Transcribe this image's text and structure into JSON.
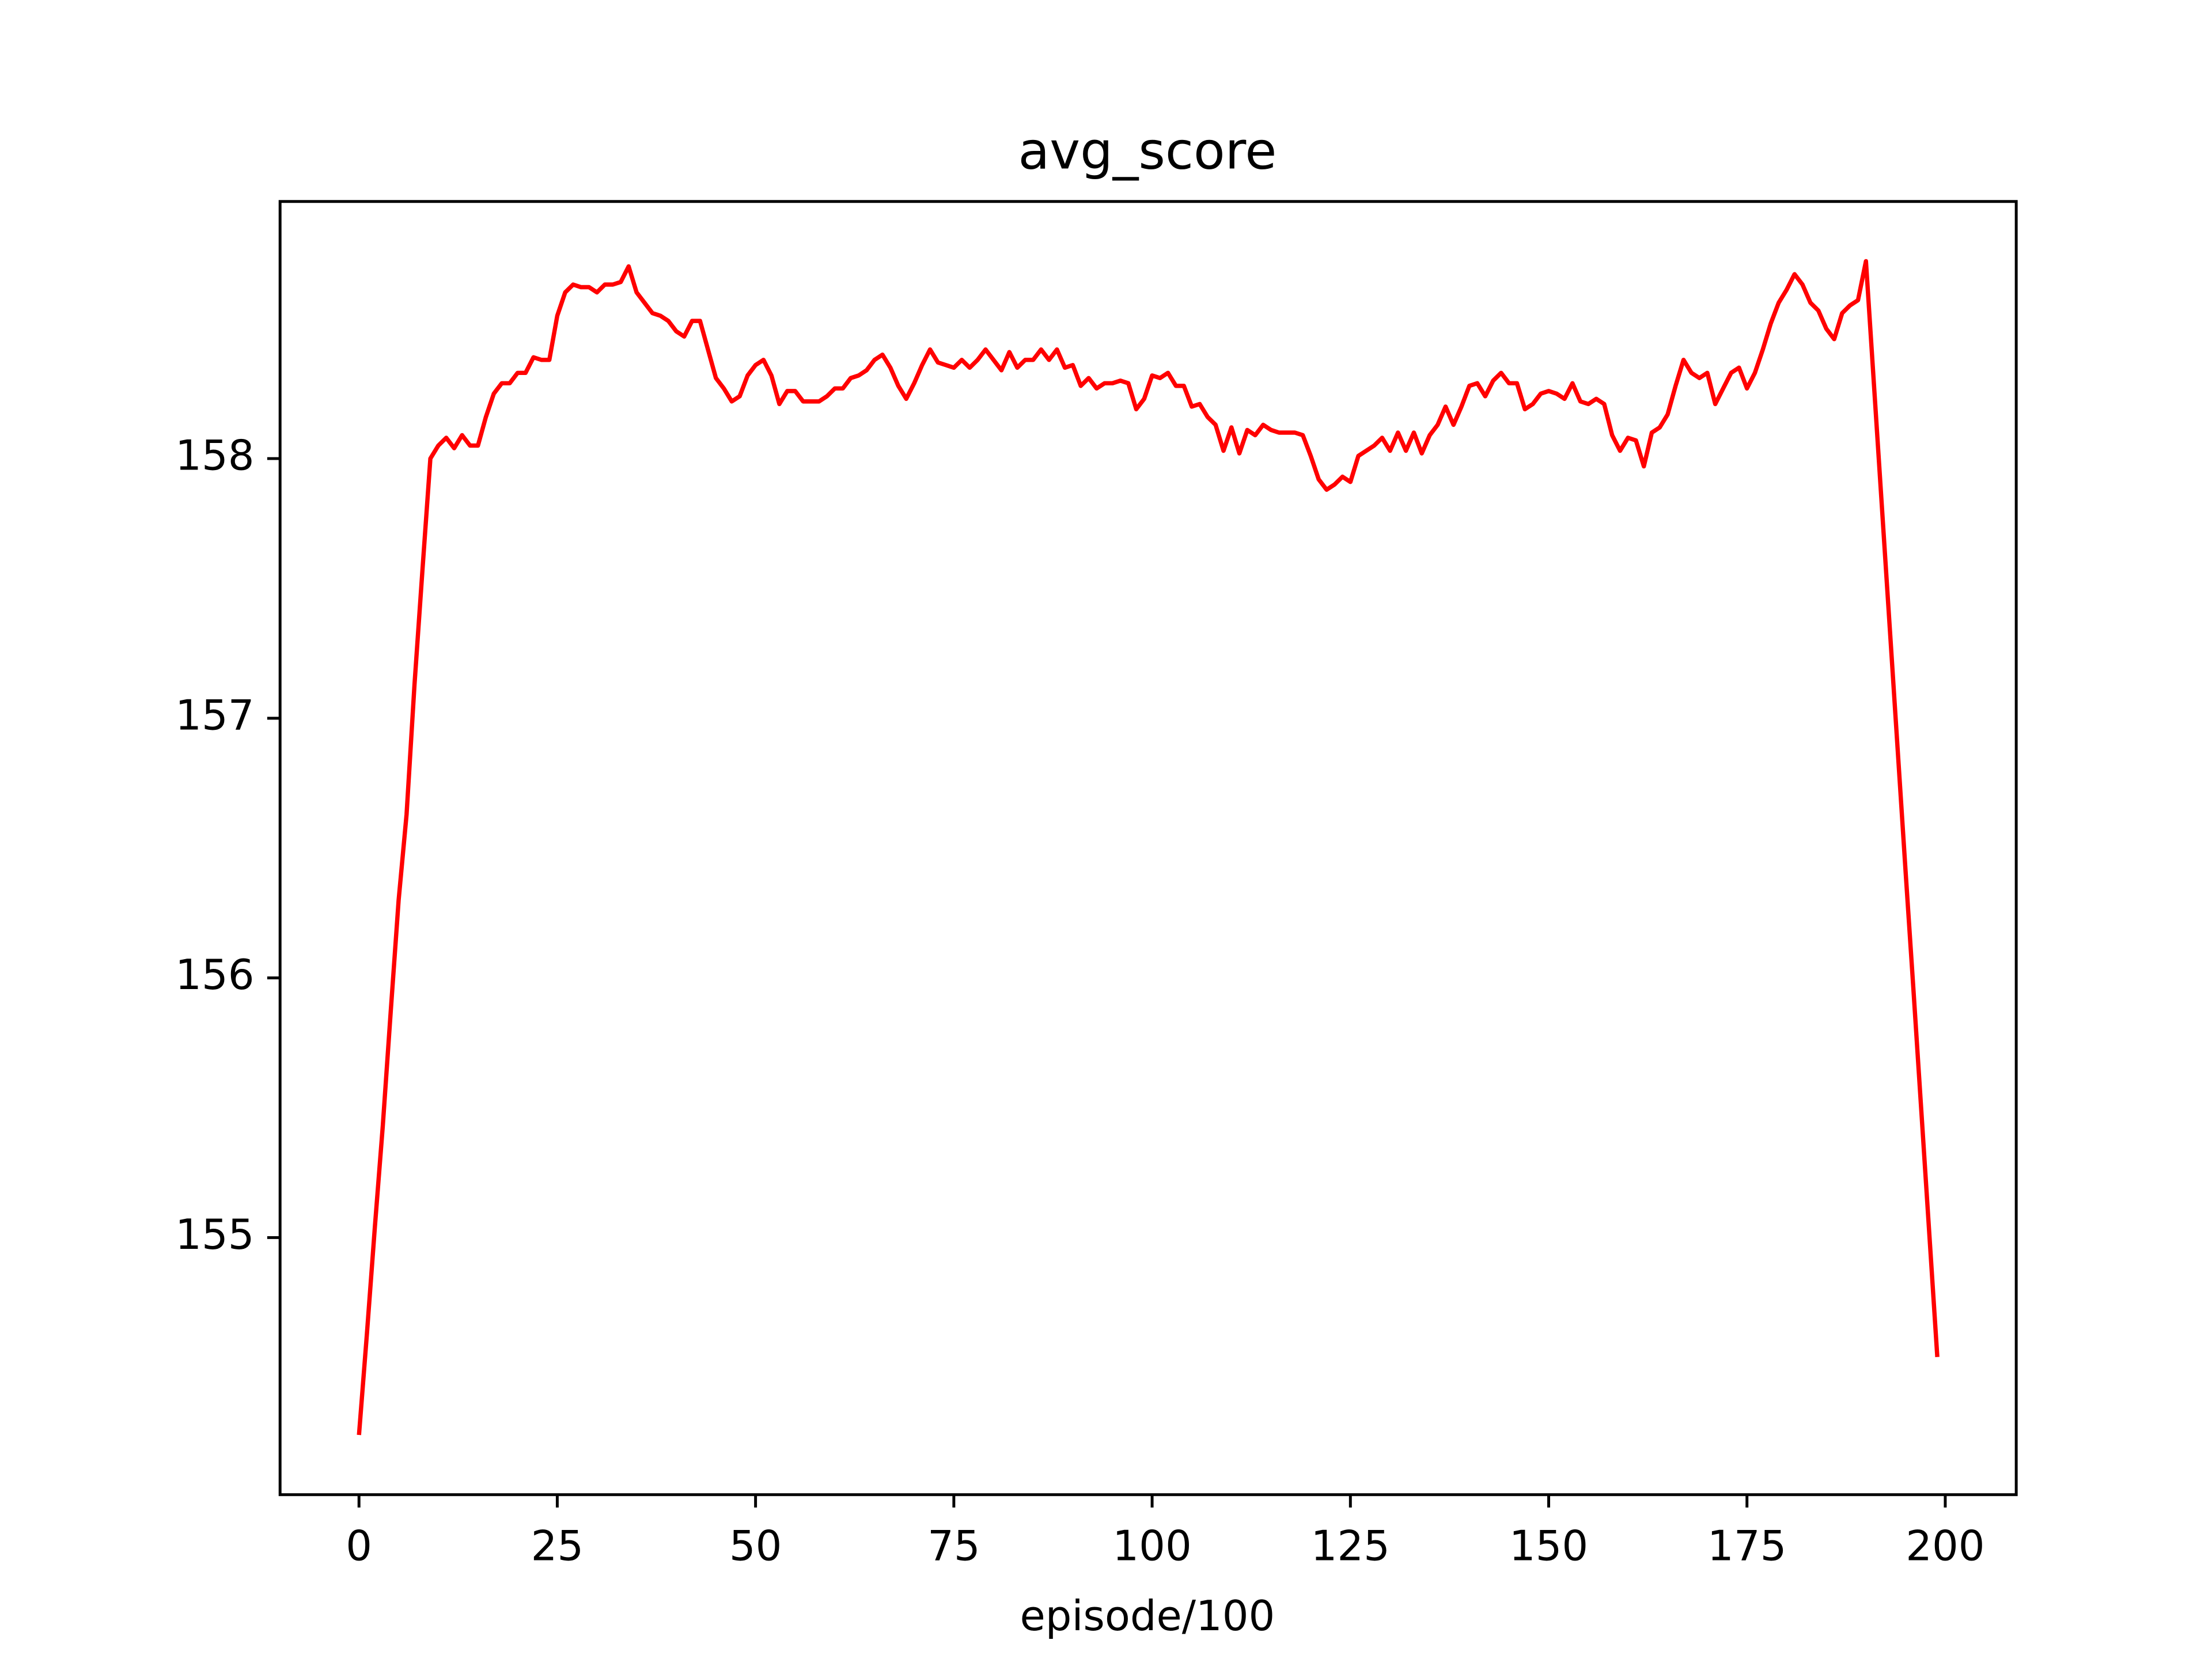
{
  "chart_data": {
    "type": "line",
    "title": "avg_score",
    "xlabel": "episode/100",
    "x": [
      0,
      1,
      2,
      3,
      4,
      5,
      6,
      7,
      8,
      9,
      10,
      11,
      12,
      13,
      14,
      15,
      16,
      17,
      18,
      19,
      20,
      21,
      22,
      23,
      24,
      25,
      26,
      27,
      28,
      29,
      30,
      31,
      32,
      33,
      34,
      35,
      36,
      37,
      38,
      39,
      40,
      41,
      42,
      43,
      44,
      45,
      46,
      47,
      48,
      49,
      50,
      51,
      52,
      53,
      54,
      55,
      56,
      57,
      58,
      59,
      60,
      61,
      62,
      63,
      64,
      65,
      66,
      67,
      68,
      69,
      70,
      71,
      72,
      73,
      74,
      75,
      76,
      77,
      78,
      79,
      80,
      81,
      82,
      83,
      84,
      85,
      86,
      87,
      88,
      89,
      90,
      91,
      92,
      93,
      94,
      95,
      96,
      97,
      98,
      99,
      100,
      101,
      102,
      103,
      104,
      105,
      106,
      107,
      108,
      109,
      110,
      111,
      112,
      113,
      114,
      115,
      116,
      117,
      118,
      119,
      120,
      121,
      122,
      123,
      124,
      125,
      126,
      127,
      128,
      129,
      130,
      131,
      132,
      133,
      134,
      135,
      136,
      137,
      138,
      139,
      140,
      141,
      142,
      143,
      144,
      145,
      146,
      147,
      148,
      149,
      150,
      151,
      152,
      153,
      154,
      155,
      156,
      157,
      158,
      159,
      160,
      161,
      162,
      163,
      164,
      165,
      166,
      167,
      168,
      169,
      170,
      171,
      172,
      173,
      174,
      175,
      176,
      177,
      178,
      179,
      180,
      181,
      182,
      183,
      184,
      185,
      186,
      187,
      188,
      189,
      190,
      191,
      192,
      193,
      194,
      195,
      196,
      197,
      198,
      199
    ],
    "series": [
      {
        "color": "#ff0000",
        "values": [
          154.24,
          154.63,
          155.04,
          155.43,
          155.87,
          156.3,
          156.63,
          157.13,
          157.57,
          158.0,
          158.05,
          158.08,
          158.04,
          158.09,
          158.05,
          158.05,
          158.16,
          158.25,
          158.29,
          158.29,
          158.33,
          158.33,
          158.39,
          158.38,
          158.38,
          158.55,
          158.64,
          158.67,
          158.66,
          158.66,
          158.64,
          158.67,
          158.67,
          158.68,
          158.74,
          158.64,
          158.6,
          158.56,
          158.55,
          158.53,
          158.49,
          158.47,
          158.53,
          158.53,
          158.42,
          158.31,
          158.27,
          158.22,
          158.24,
          158.32,
          158.36,
          158.38,
          158.32,
          158.21,
          158.26,
          158.26,
          158.22,
          158.22,
          158.22,
          158.24,
          158.27,
          158.27,
          158.31,
          158.32,
          158.34,
          158.38,
          158.4,
          158.35,
          158.28,
          158.23,
          158.29,
          158.36,
          158.42,
          158.37,
          158.36,
          158.35,
          158.38,
          158.35,
          158.38,
          158.42,
          158.38,
          158.34,
          158.41,
          158.35,
          158.38,
          158.38,
          158.42,
          158.38,
          158.42,
          158.35,
          158.36,
          158.28,
          158.31,
          158.27,
          158.29,
          158.29,
          158.3,
          158.29,
          158.19,
          158.23,
          158.32,
          158.31,
          158.33,
          158.28,
          158.28,
          158.2,
          158.21,
          158.16,
          158.13,
          158.03,
          158.12,
          158.02,
          158.11,
          158.09,
          158.13,
          158.11,
          158.1,
          158.1,
          158.1,
          158.09,
          158.01,
          157.92,
          157.88,
          157.9,
          157.93,
          157.91,
          158.01,
          158.03,
          158.05,
          158.08,
          158.03,
          158.1,
          158.03,
          158.1,
          158.02,
          158.09,
          158.13,
          158.2,
          158.13,
          158.2,
          158.28,
          158.29,
          158.24,
          158.3,
          158.33,
          158.29,
          158.29,
          158.19,
          158.21,
          158.25,
          158.26,
          158.25,
          158.23,
          158.29,
          158.22,
          158.21,
          158.23,
          158.21,
          158.09,
          158.03,
          158.08,
          158.07,
          157.97,
          158.1,
          158.12,
          158.17,
          158.28,
          158.38,
          158.33,
          158.31,
          158.33,
          158.21,
          158.27,
          158.33,
          158.35,
          158.27,
          158.33,
          158.42,
          158.52,
          158.6,
          158.65,
          158.71,
          158.67,
          158.6,
          158.57,
          158.5,
          158.46,
          158.56,
          158.59,
          158.61,
          158.76,
          158.29,
          157.82,
          157.35,
          156.88,
          156.41,
          155.95,
          155.48,
          155.01,
          154.54
        ]
      }
    ],
    "xlim": [
      -9.95,
      208.95
    ],
    "ylim": [
      154.01,
      158.99
    ],
    "xticks": [
      0,
      25,
      50,
      75,
      100,
      125,
      150,
      175,
      200
    ],
    "yticks": [
      155,
      156,
      157,
      158
    ],
    "grid": false
  }
}
